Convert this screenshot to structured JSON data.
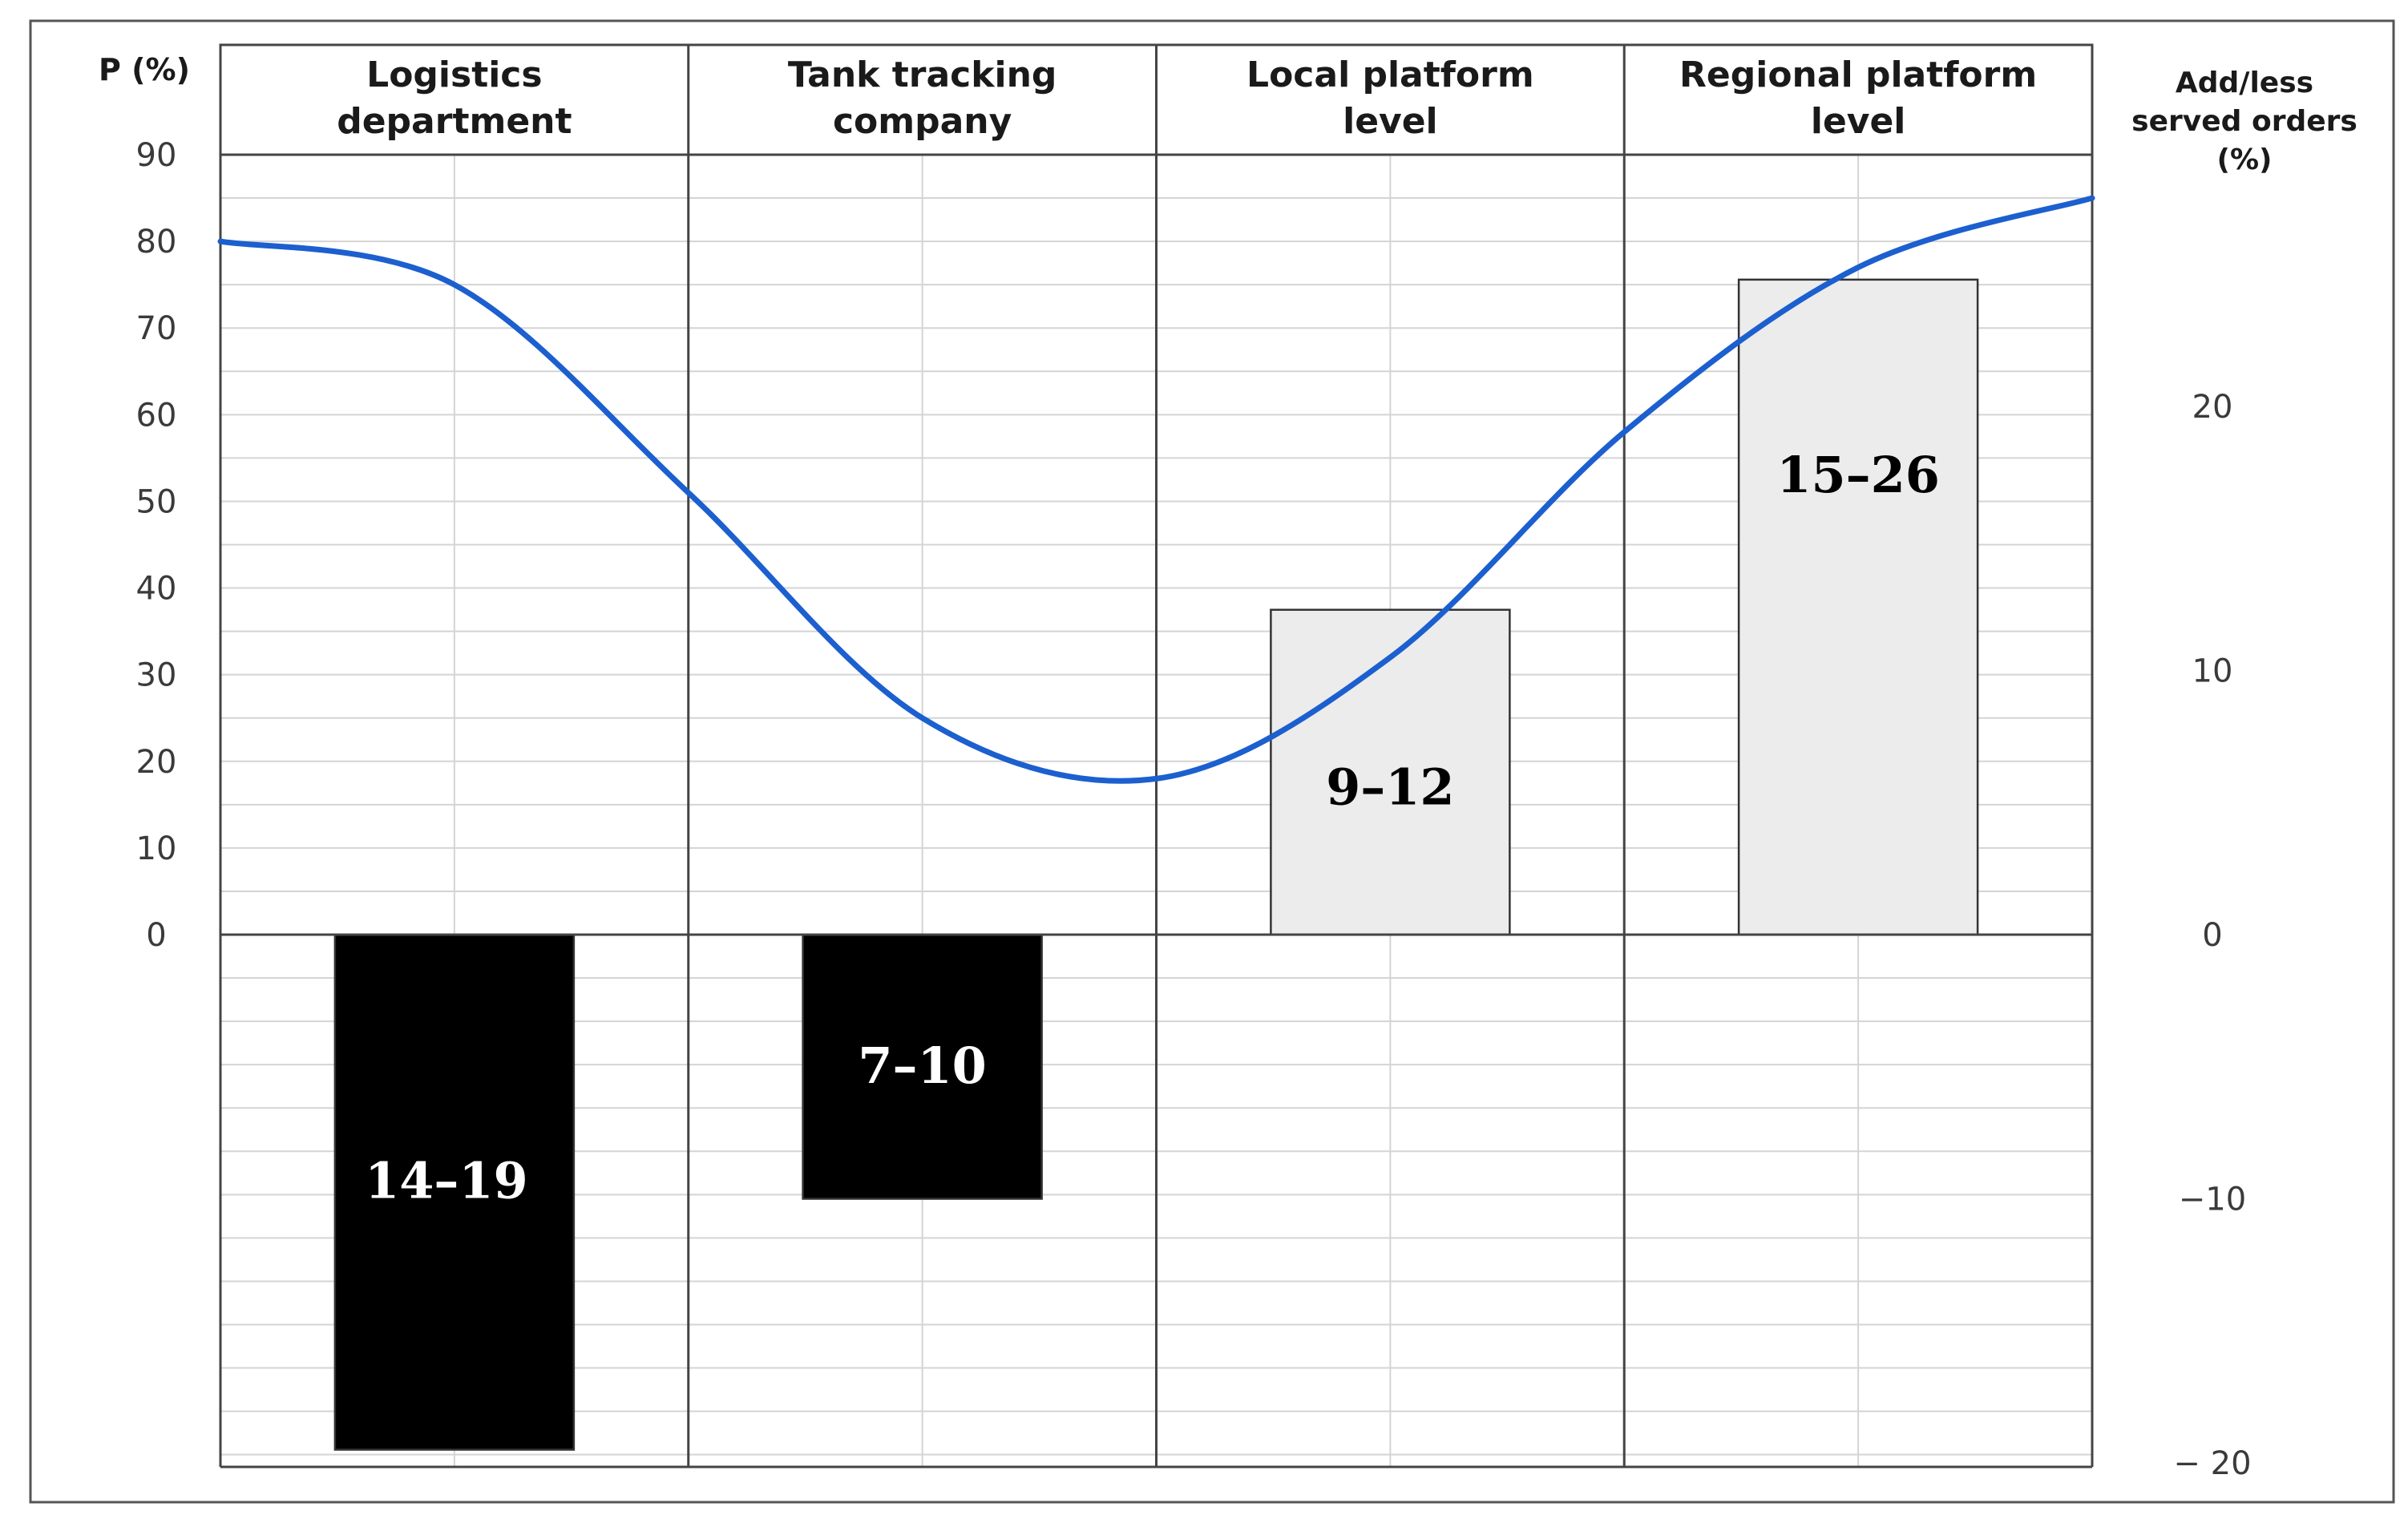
{
  "chart_data": {
    "type": "bar",
    "categories": [
      [
        "Logistics",
        "department"
      ],
      [
        "Tank tracking",
        "company"
      ],
      [
        "Local platform",
        "level"
      ],
      [
        "Regional platform",
        "level"
      ]
    ],
    "left_axis": {
      "title": "P (%)",
      "ticks": [
        0,
        10,
        20,
        30,
        40,
        50,
        60,
        70,
        80,
        90
      ],
      "range": [
        0,
        90
      ]
    },
    "right_axis": {
      "title": [
        "Add/less",
        "served orders",
        "(%)"
      ],
      "ticks": [
        {
          "value": 20,
          "label": "20"
        },
        {
          "value": 10,
          "label": "10"
        },
        {
          "value": 0,
          "label": "0"
        },
        {
          "value": -10,
          "label": "−10"
        },
        {
          "value": -20,
          "label": "− 20"
        }
      ],
      "range": [
        -20,
        30
      ]
    },
    "bars": [
      {
        "category": "Logistics department",
        "range_label": "14–19",
        "value": -19.5,
        "color": "#000000",
        "label_color": "#ffffff"
      },
      {
        "category": "Tank tracking company",
        "range_label": "7–10",
        "value": -10,
        "color": "#000000",
        "label_color": "#ffffff"
      },
      {
        "category": "Local platform level",
        "range_label": "9–12",
        "value": 12.3,
        "color": "#ececec",
        "label_color": "#000000"
      },
      {
        "category": "Regional platform level",
        "range_label": "15–26",
        "value": 24.8,
        "color": "#ececec",
        "label_color": "#000000"
      }
    ],
    "line": {
      "color": "#1c5fcf",
      "x": [
        0.0,
        0.5,
        1.0,
        1.5,
        2.0,
        2.5,
        3.0,
        3.5,
        4.0
      ],
      "y": [
        80,
        75,
        51,
        25,
        18,
        32,
        58,
        77,
        85
      ]
    },
    "grid": true
  }
}
